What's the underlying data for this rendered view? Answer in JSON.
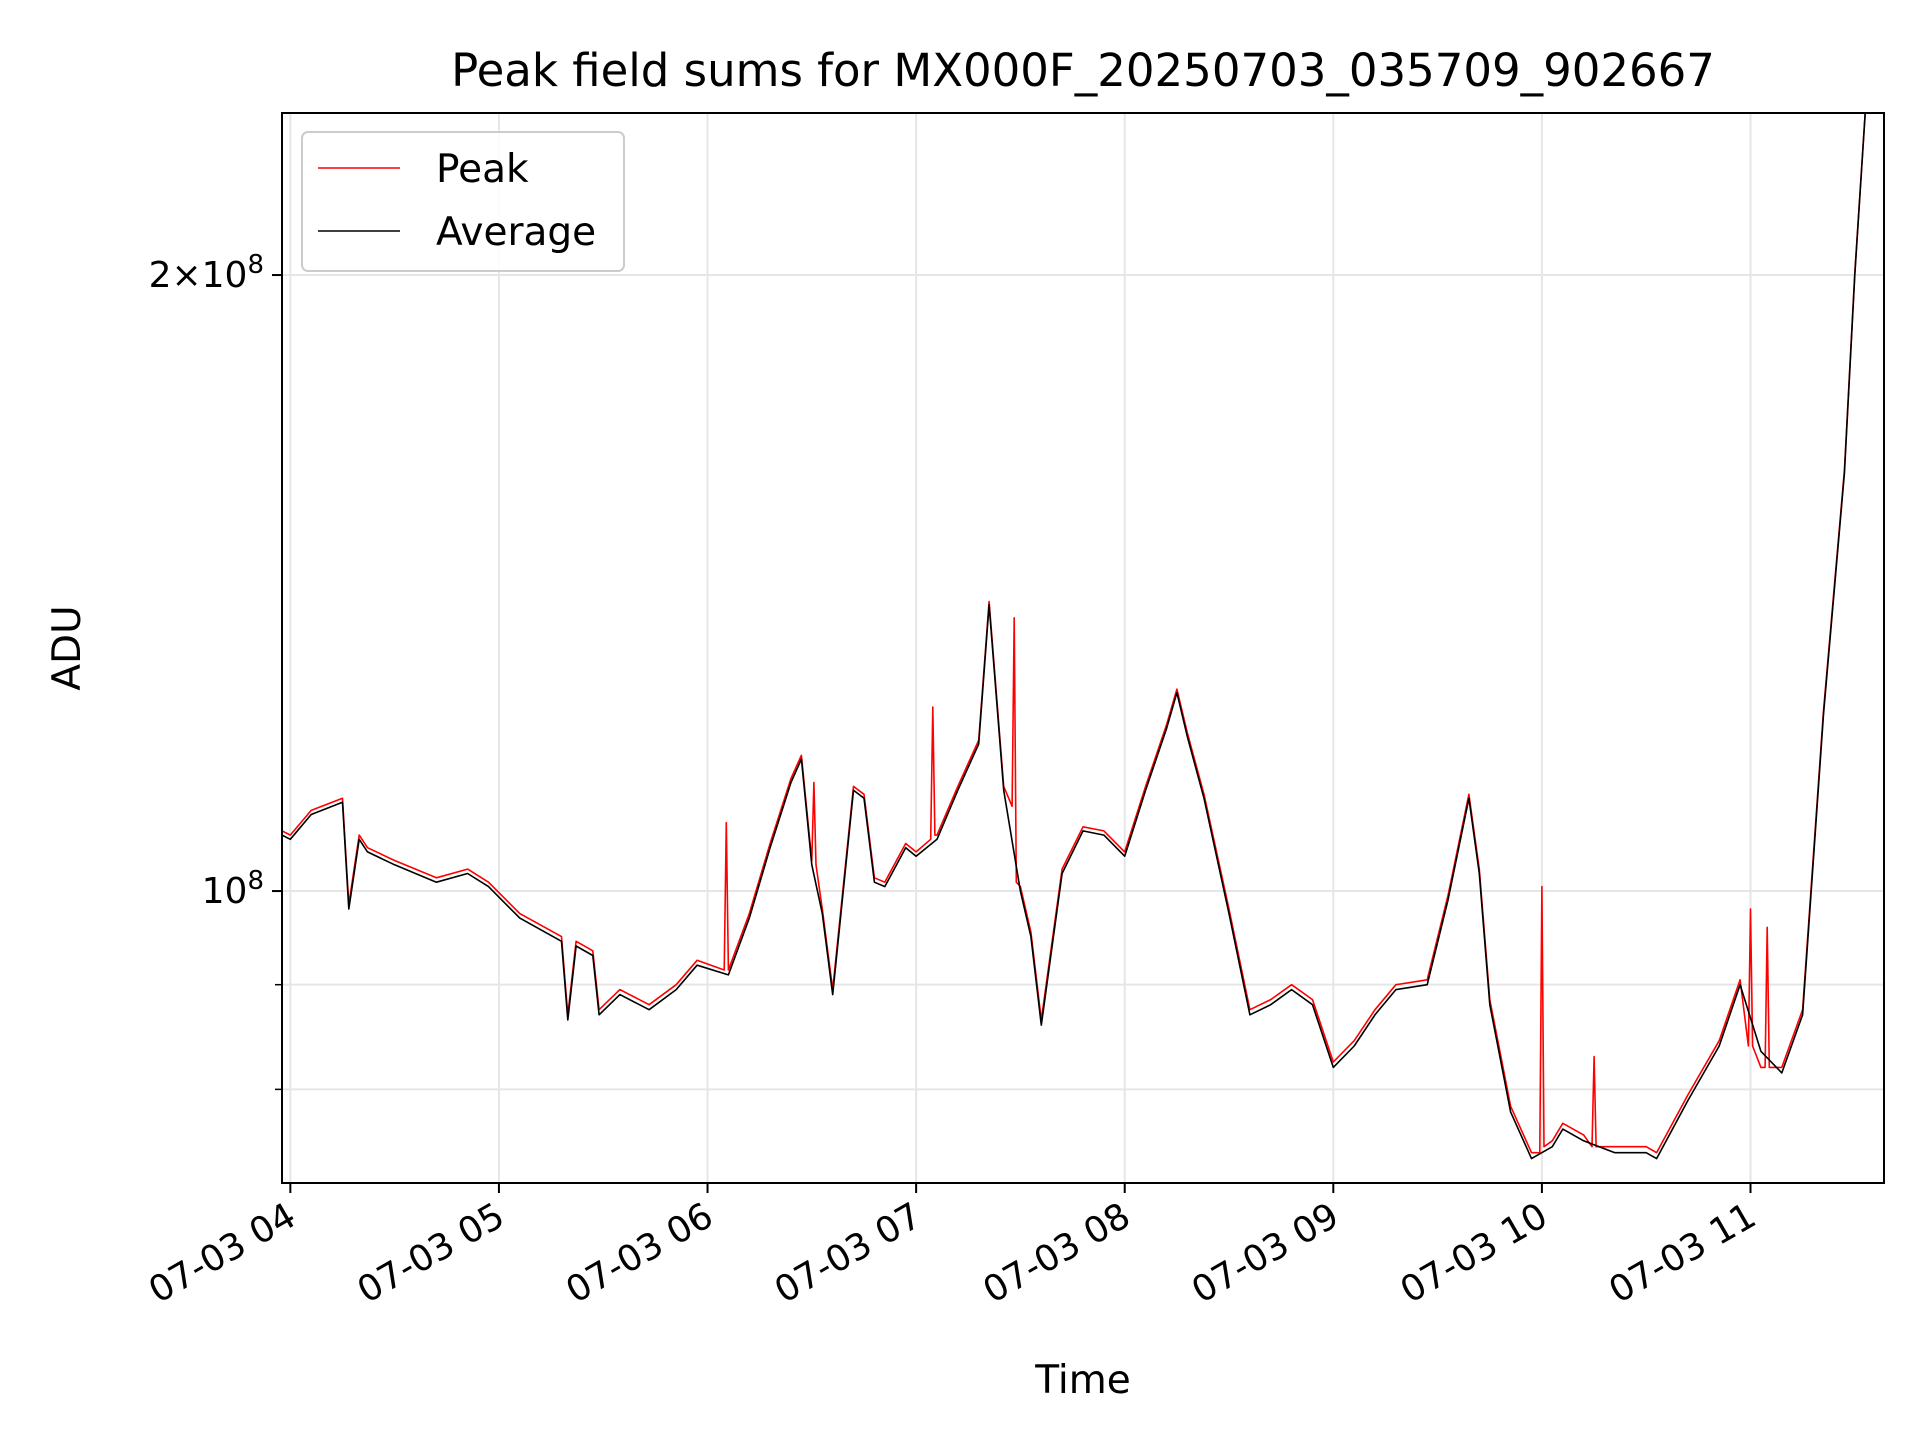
{
  "chart_data": {
    "type": "line",
    "title": "Peak field sums for MX000F_20250703_035709_902667",
    "xlabel": "Time",
    "ylabel": "ADU",
    "x_tick_labels": [
      "07-03 04",
      "07-03 05",
      "07-03 06",
      "07-03 07",
      "07-03 08",
      "07-03 09",
      "07-03 10",
      "07-03 11"
    ],
    "x_tick_hours": [
      4,
      5,
      6,
      7,
      8,
      9,
      10,
      11
    ],
    "xlim_hours": [
      3.96,
      11.64
    ],
    "y_scale": "log",
    "ylim": [
      72000000,
      240000000
    ],
    "y_major_ticks": [
      {
        "value": 100000000,
        "label": "10^8"
      },
      {
        "value": 200000000,
        "label": "2×10^8"
      }
    ],
    "y_minor_ticks": [
      80000000,
      90000000
    ],
    "grid": true,
    "legend": {
      "position": "upper-left",
      "entries": [
        "Peak",
        "Average"
      ]
    },
    "colors": {
      "peak": "#ff0000",
      "average": "#000000",
      "grid": "#e6e6e6"
    },
    "series": [
      {
        "name": "Average",
        "x": [
          3.96,
          4.0,
          4.1,
          4.25,
          4.28,
          4.33,
          4.37,
          4.5,
          4.7,
          4.85,
          4.95,
          5.1,
          5.3,
          5.33,
          5.37,
          5.45,
          5.48,
          5.58,
          5.72,
          5.85,
          5.95,
          6.1,
          6.2,
          6.3,
          6.4,
          6.45,
          6.5,
          6.55,
          6.6,
          6.7,
          6.75,
          6.8,
          6.85,
          6.95,
          7.0,
          7.1,
          7.2,
          7.3,
          7.35,
          7.42,
          7.5,
          7.55,
          7.6,
          7.7,
          7.8,
          7.9,
          8.0,
          8.1,
          8.2,
          8.25,
          8.3,
          8.38,
          8.5,
          8.6,
          8.7,
          8.8,
          8.9,
          9.0,
          9.1,
          9.2,
          9.3,
          9.45,
          9.55,
          9.65,
          9.7,
          9.75,
          9.85,
          9.95,
          10.05,
          10.1,
          10.2,
          10.35,
          10.5,
          10.55,
          10.7,
          10.85,
          10.95,
          11.05,
          11.15,
          11.25,
          11.35,
          11.45,
          11.5,
          11.55
        ],
        "values": [
          106500000,
          106000000,
          109000000,
          110500000,
          98000000,
          106000000,
          104500000,
          103000000,
          101000000,
          102000000,
          100500000,
          97000000,
          94500000,
          86500000,
          94000000,
          93000000,
          87000000,
          89000000,
          87500000,
          89500000,
          92000000,
          91000000,
          97000000,
          105000000,
          113000000,
          116000000,
          103000000,
          97500000,
          89000000,
          112000000,
          111000000,
          101000000,
          100500000,
          105000000,
          104000000,
          106000000,
          112000000,
          118000000,
          138000000,
          112000000,
          100000000,
          95000000,
          86000000,
          102000000,
          107000000,
          106500000,
          104000000,
          112000000,
          120000000,
          125000000,
          119000000,
          111000000,
          97500000,
          87000000,
          88000000,
          89500000,
          88000000,
          82000000,
          84000000,
          87000000,
          89500000,
          90000000,
          99000000,
          111000000,
          102000000,
          88000000,
          78000000,
          74000000,
          75000000,
          76500000,
          75500000,
          74500000,
          74500000,
          74000000,
          79000000,
          84000000,
          90000000,
          83500000,
          81500000,
          87000000,
          122000000,
          160000000,
          200000000,
          240000000
        ]
      },
      {
        "name": "Peak",
        "x": [
          3.96,
          4.0,
          4.1,
          4.25,
          4.28,
          4.33,
          4.37,
          4.5,
          4.7,
          4.85,
          4.95,
          5.1,
          5.3,
          5.33,
          5.37,
          5.45,
          5.48,
          5.58,
          5.72,
          5.85,
          5.95,
          6.08,
          6.09,
          6.1,
          6.2,
          6.3,
          6.4,
          6.45,
          6.5,
          6.51,
          6.52,
          6.55,
          6.6,
          6.7,
          6.75,
          6.8,
          6.85,
          6.95,
          7.0,
          7.07,
          7.08,
          7.09,
          7.1,
          7.2,
          7.3,
          7.35,
          7.42,
          7.46,
          7.47,
          7.48,
          7.5,
          7.55,
          7.6,
          7.7,
          7.8,
          7.9,
          8.0,
          8.1,
          8.2,
          8.25,
          8.3,
          8.38,
          8.5,
          8.6,
          8.7,
          8.8,
          8.9,
          9.0,
          9.1,
          9.2,
          9.3,
          9.45,
          9.55,
          9.65,
          9.7,
          9.75,
          9.85,
          9.95,
          9.99,
          10.0,
          10.01,
          10.05,
          10.1,
          10.2,
          10.24,
          10.25,
          10.26,
          10.3,
          10.35,
          10.5,
          10.55,
          10.7,
          10.85,
          10.95,
          10.99,
          11.0,
          11.01,
          11.05,
          11.07,
          11.08,
          11.09,
          11.15,
          11.25,
          11.35,
          11.45,
          11.5,
          11.55
        ],
        "values": [
          107000000,
          106500000,
          109500000,
          111000000,
          98500000,
          106500000,
          105000000,
          103500000,
          101500000,
          102500000,
          101000000,
          97500000,
          95000000,
          87000000,
          94500000,
          93500000,
          87500000,
          89500000,
          88000000,
          90000000,
          92500000,
          91500000,
          108000000,
          91500000,
          97500000,
          105500000,
          113500000,
          116500000,
          103500000,
          113000000,
          103000000,
          98000000,
          89500000,
          112500000,
          111500000,
          101500000,
          101000000,
          105500000,
          104500000,
          106000000,
          123000000,
          106500000,
          106500000,
          112500000,
          118500000,
          138500000,
          112500000,
          110000000,
          136000000,
          101000000,
          100500000,
          95500000,
          86500000,
          102500000,
          107500000,
          107000000,
          104500000,
          112500000,
          120500000,
          125500000,
          119500000,
          111500000,
          98000000,
          87500000,
          88500000,
          90000000,
          88500000,
          82500000,
          84500000,
          87500000,
          90000000,
          90500000,
          99500000,
          111500000,
          102500000,
          88500000,
          78500000,
          74500000,
          74500000,
          100500000,
          75000000,
          75500000,
          77000000,
          76000000,
          75000000,
          83000000,
          75000000,
          75000000,
          75000000,
          75000000,
          74500000,
          79500000,
          84500000,
          90500000,
          84000000,
          98000000,
          84000000,
          82000000,
          82000000,
          96000000,
          82000000,
          82000000,
          87500000,
          122500000,
          160500000,
          200500000,
          240000000
        ]
      }
    ]
  }
}
